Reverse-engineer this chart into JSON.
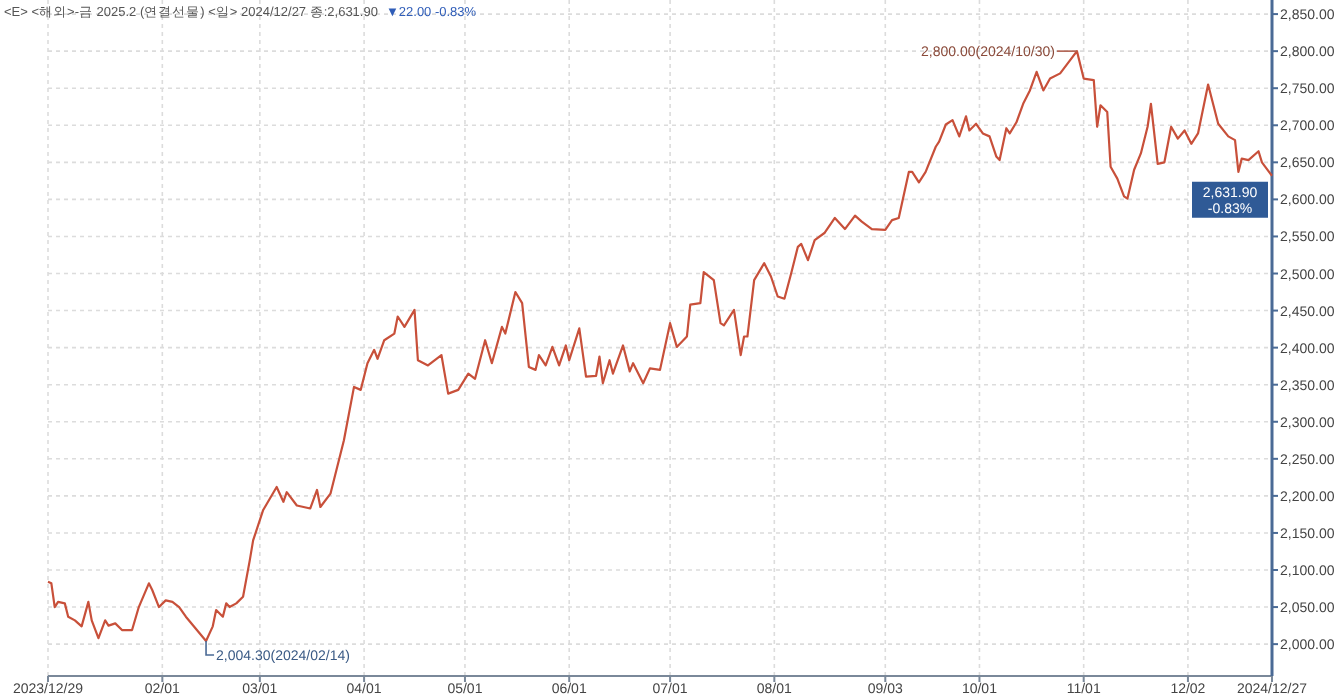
{
  "chart_data": {
    "type": "line",
    "title": "<E> <해외>-금 2025.2 (연결선물) <일> 2024/12/27 종:2,631.90",
    "subtitle": "▼22.00  -0.83%",
    "x": [
      "2023-12-29",
      "2023-12-30",
      "2023-12-31",
      "2024-01-01",
      "2024-01-03",
      "2024-01-04",
      "2024-01-06",
      "2024-01-08",
      "2024-01-10",
      "2024-01-11",
      "2024-01-13",
      "2024-01-15",
      "2024-01-16",
      "2024-01-18",
      "2024-01-20",
      "2024-01-23",
      "2024-01-25",
      "2024-01-28",
      "2024-01-29",
      "2024-01-31",
      "2024-02-02",
      "2024-02-04",
      "2024-02-06",
      "2024-02-08",
      "2024-02-14",
      "2024-02-16",
      "2024-02-17",
      "2024-02-19",
      "2024-02-20",
      "2024-02-21",
      "2024-02-23",
      "2024-02-25",
      "2024-02-27",
      "2024-02-28",
      "2024-03-02",
      "2024-03-06",
      "2024-03-08",
      "2024-03-09",
      "2024-03-12",
      "2024-03-16",
      "2024-03-18",
      "2024-03-19",
      "2024-03-22",
      "2024-03-26",
      "2024-03-29",
      "2024-03-31",
      "2024-04-02",
      "2024-04-04",
      "2024-04-05",
      "2024-04-07",
      "2024-04-10",
      "2024-04-11",
      "2024-04-13",
      "2024-04-16",
      "2024-04-17",
      "2024-04-20",
      "2024-04-24",
      "2024-04-26",
      "2024-04-29",
      "2024-05-02",
      "2024-05-04",
      "2024-05-07",
      "2024-05-09",
      "2024-05-12",
      "2024-05-13",
      "2024-05-16",
      "2024-05-18",
      "2024-05-20",
      "2024-05-22",
      "2024-05-23",
      "2024-05-25",
      "2024-05-27",
      "2024-05-29",
      "2024-05-31",
      "2024-06-01",
      "2024-06-04",
      "2024-06-06",
      "2024-06-09",
      "2024-06-10",
      "2024-06-11",
      "2024-06-13",
      "2024-06-14",
      "2024-06-17",
      "2024-06-19",
      "2024-06-20",
      "2024-06-23",
      "2024-06-25",
      "2024-06-28",
      "2024-07-01",
      "2024-07-03",
      "2024-07-06",
      "2024-07-07",
      "2024-07-10",
      "2024-07-11",
      "2024-07-14",
      "2024-07-16",
      "2024-07-17",
      "2024-07-20",
      "2024-07-22",
      "2024-07-23",
      "2024-07-24",
      "2024-07-26",
      "2024-07-29",
      "2024-07-31",
      "2024-08-02",
      "2024-08-04",
      "2024-08-06",
      "2024-08-08",
      "2024-08-09",
      "2024-08-11",
      "2024-08-13",
      "2024-08-16",
      "2024-08-19",
      "2024-08-22",
      "2024-08-25",
      "2024-08-27",
      "2024-08-30",
      "2024-09-03",
      "2024-09-05",
      "2024-09-07",
      "2024-09-10",
      "2024-09-11",
      "2024-09-13",
      "2024-09-15",
      "2024-09-18",
      "2024-09-19",
      "2024-09-21",
      "2024-09-23",
      "2024-09-25",
      "2024-09-27",
      "2024-09-28",
      "2024-09-30",
      "2024-10-02",
      "2024-10-04",
      "2024-10-06",
      "2024-10-07",
      "2024-10-09",
      "2024-10-10",
      "2024-10-12",
      "2024-10-14",
      "2024-10-16",
      "2024-10-18",
      "2024-10-20",
      "2024-10-22",
      "2024-10-25",
      "2024-10-30",
      "2024-11-01",
      "2024-11-04",
      "2024-11-05",
      "2024-11-06",
      "2024-11-08",
      "2024-11-09",
      "2024-11-11",
      "2024-11-13",
      "2024-11-14",
      "2024-11-16",
      "2024-11-18",
      "2024-11-20",
      "2024-11-21",
      "2024-11-23",
      "2024-11-25",
      "2024-11-27",
      "2024-11-29",
      "2024-12-01",
      "2024-12-03",
      "2024-12-05",
      "2024-12-08",
      "2024-12-11",
      "2024-12-14",
      "2024-12-16",
      "2024-12-17",
      "2024-12-18",
      "2024-12-20",
      "2024-12-23",
      "2024-12-24",
      "2024-12-27"
    ],
    "series": [
      {
        "color": "#c8503a",
        "values": [
          2084,
          2082,
          2050,
          2057,
          2055,
          2037,
          2032,
          2024,
          2057,
          2032,
          2008,
          2032,
          2025,
          2028,
          2019,
          2019,
          2050,
          2082,
          2073,
          2050,
          2059,
          2057,
          2050,
          2037,
          2004.3,
          2024,
          2046,
          2037,
          2055,
          2050,
          2055,
          2064,
          2113,
          2140,
          2181,
          2212,
          2192,
          2205,
          2187,
          2183,
          2208,
          2185,
          2203,
          2275,
          2347,
          2343,
          2379,
          2397,
          2385,
          2410,
          2419,
          2442,
          2428,
          2451,
          2383,
          2376,
          2390,
          2338,
          2343,
          2365,
          2358,
          2410,
          2379,
          2428,
          2419,
          2475,
          2460,
          2374,
          2370,
          2390,
          2376,
          2401,
          2376,
          2403,
          2383,
          2426,
          2361,
          2362,
          2388,
          2352,
          2383,
          2365,
          2403,
          2368,
          2379,
          2352,
          2372,
          2370,
          2433,
          2401,
          2415,
          2458,
          2460,
          2502,
          2491,
          2433,
          2430,
          2451,
          2390,
          2415,
          2415,
          2491,
          2514,
          2496,
          2469,
          2466,
          2500,
          2536,
          2540,
          2518,
          2545,
          2555,
          2575,
          2560,
          2578,
          2570,
          2560,
          2559,
          2572,
          2575,
          2637,
          2637,
          2623,
          2637,
          2671,
          2678,
          2701,
          2707,
          2685,
          2712,
          2693,
          2702,
          2689,
          2685,
          2658,
          2653,
          2696,
          2689,
          2704,
          2729,
          2747,
          2772,
          2747,
          2763,
          2770,
          2800,
          2763,
          2761,
          2698,
          2727,
          2718,
          2644,
          2628,
          2604,
          2601,
          2640,
          2662,
          2698,
          2729,
          2648,
          2650,
          2698,
          2682,
          2693,
          2675,
          2689,
          2755,
          2702,
          2685,
          2680,
          2637,
          2655,
          2653,
          2665,
          2650,
          2631.9
        ]
      }
    ],
    "xlim": [
      "2023-12-29",
      "2024-12-27"
    ],
    "xticks": [
      {
        "value": "2023-12-29",
        "label": "2023/12/29"
      },
      {
        "value": "2024-02-01",
        "label": "02/01"
      },
      {
        "value": "2024-03-01",
        "label": "03/01"
      },
      {
        "value": "2024-04-01",
        "label": "04/01"
      },
      {
        "value": "2024-05-01",
        "label": "05/01"
      },
      {
        "value": "2024-06-01",
        "label": "06/01"
      },
      {
        "value": "2024-07-01",
        "label": "07/01"
      },
      {
        "value": "2024-08-01",
        "label": "08/01"
      },
      {
        "value": "2024-09-03",
        "label": "09/03"
      },
      {
        "value": "2024-10-01",
        "label": "10/01"
      },
      {
        "value": "2024-11-01",
        "label": "11/01"
      },
      {
        "value": "2024-12-02",
        "label": "12/02"
      },
      {
        "value": "2024-12-27",
        "label": "2024/12/27"
      }
    ],
    "ylim": [
      1957,
      2869
    ],
    "yticks": [
      {
        "value": 2000,
        "label": "2,000.00"
      },
      {
        "value": 2050,
        "label": "2,050.00"
      },
      {
        "value": 2100,
        "label": "2,100.00"
      },
      {
        "value": 2150,
        "label": "2,150.00"
      },
      {
        "value": 2200,
        "label": "2,200.00"
      },
      {
        "value": 2250,
        "label": "2,250.00"
      },
      {
        "value": 2300,
        "label": "2,300.00"
      },
      {
        "value": 2350,
        "label": "2,350.00"
      },
      {
        "value": 2400,
        "label": "2,400.00"
      },
      {
        "value": 2450,
        "label": "2,450.00"
      },
      {
        "value": 2500,
        "label": "2,500.00"
      },
      {
        "value": 2550,
        "label": "2,550.00"
      },
      {
        "value": 2600,
        "label": "2,600.00"
      },
      {
        "value": 2650,
        "label": "2,650.00"
      },
      {
        "value": 2700,
        "label": "2,700.00"
      },
      {
        "value": 2750,
        "label": "2,750.00"
      },
      {
        "value": 2800,
        "label": "2,800.00"
      },
      {
        "value": 2850,
        "label": "2,850.00"
      }
    ],
    "grid": true,
    "annotations": [
      {
        "text": "2,800.00(2024/10/30)",
        "x": "2024-10-30",
        "y": 2800
      },
      {
        "text": "2,004.30(2024/02/14)",
        "x": "2024-02-14",
        "y": 2004.3
      },
      {
        "text": "2,631.90",
        "x": "2024-12-27",
        "y": 2631.9
      },
      {
        "text": "-0.83%",
        "x": "2024-12-27",
        "y": 2631.9
      }
    ]
  }
}
